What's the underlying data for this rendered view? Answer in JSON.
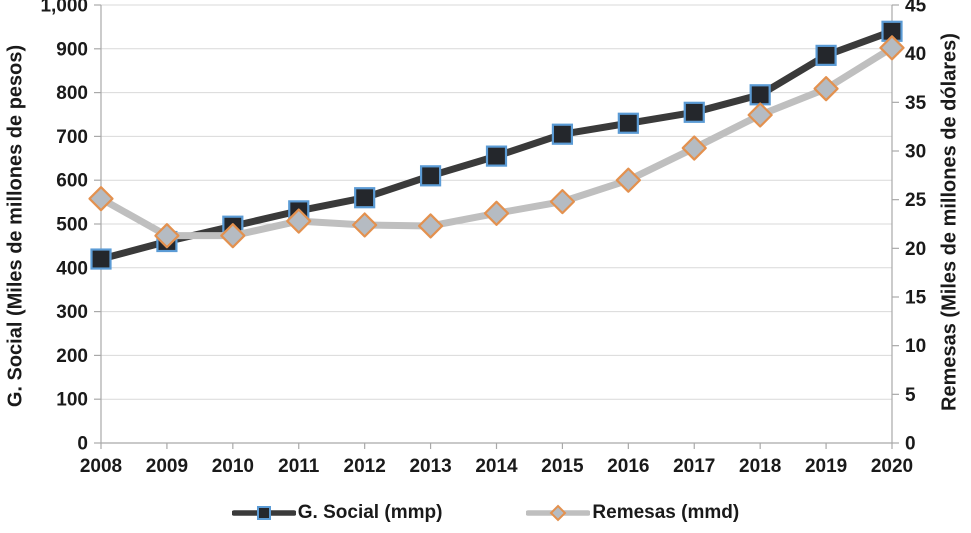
{
  "chart_data": {
    "type": "line",
    "title": "",
    "categories": [
      "2008",
      "2009",
      "2010",
      "2011",
      "2012",
      "2013",
      "2014",
      "2015",
      "2016",
      "2017",
      "2018",
      "2019",
      "2020"
    ],
    "series": [
      {
        "name": "G. Social (mmp)",
        "axis": "left",
        "marker": "square",
        "values": [
          420,
          460,
          495,
          530,
          560,
          610,
          655,
          705,
          730,
          755,
          795,
          885,
          940
        ],
        "line_color": "#3a3a3a",
        "marker_fill": "#24272c",
        "marker_stroke": "#5b9bd5"
      },
      {
        "name": "Remesas (mmd)",
        "axis": "right",
        "marker": "diamond",
        "values": [
          25.1,
          21.3,
          21.3,
          22.8,
          22.4,
          22.3,
          23.6,
          24.8,
          27.0,
          30.3,
          33.7,
          36.4,
          40.6
        ],
        "line_color": "#bfbfbf",
        "marker_fill": "#b5bbc2",
        "marker_stroke": "#e3914f"
      }
    ],
    "axes": {
      "left": {
        "label": "G. Social (Miles de millones de pesos)",
        "min": 0,
        "max": 1000,
        "ticks": [
          "0",
          "100",
          "200",
          "300",
          "400",
          "500",
          "600",
          "700",
          "800",
          "900",
          "1,000"
        ]
      },
      "right": {
        "label": "Remesas (Miles de millones de dólares)",
        "min": 0,
        "max": 45,
        "ticks": [
          "0",
          "5",
          "10",
          "15",
          "20",
          "25",
          "30",
          "35",
          "40",
          "45"
        ]
      }
    },
    "grid": "horizontal",
    "legend_position": "bottom",
    "colors": {
      "gridline": "#d9d9d9",
      "axis_line": "#a9a9a9",
      "text": "#1a1a1a"
    }
  }
}
